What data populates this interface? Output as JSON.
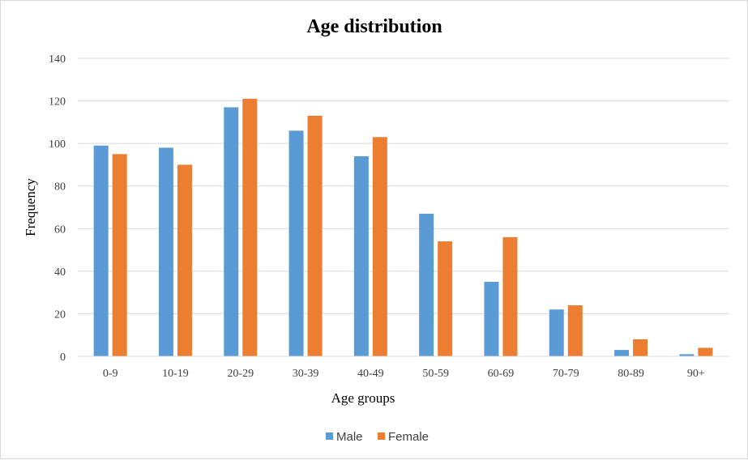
{
  "chart_data": {
    "type": "bar",
    "title": "Age distribution",
    "xlabel": "Age groups",
    "ylabel": "Frequency",
    "ylim": [
      0,
      140
    ],
    "yticks": [
      "0",
      "20",
      "40",
      "60",
      "80",
      "100",
      "120",
      "140"
    ],
    "grid": true,
    "legend_position": "bottom",
    "categories": [
      "0-9",
      "10-19",
      "20-29",
      "30-39",
      "40-49",
      "50-59",
      "60-69",
      "70-79",
      "80-89",
      "90+"
    ],
    "series": [
      {
        "name": "Male",
        "color": "#5b9bd5",
        "values": [
          99,
          98,
          117,
          106,
          94,
          67,
          35,
          22,
          3,
          1
        ]
      },
      {
        "name": "Female",
        "color": "#ed7d31",
        "values": [
          95,
          90,
          121,
          113,
          103,
          54,
          56,
          24,
          8,
          4
        ]
      }
    ]
  }
}
